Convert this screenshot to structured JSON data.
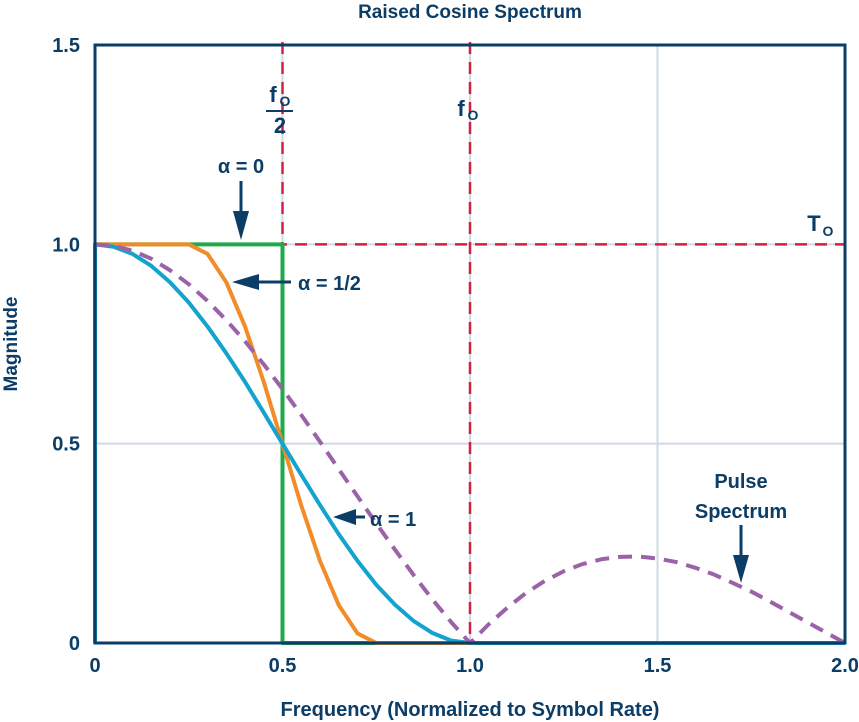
{
  "chart_data": {
    "type": "line",
    "title": "Raised Cosine Spectrum",
    "xlabel": "Frequency (Normalized to Symbol Rate)",
    "ylabel": "Magnitude",
    "xlim": [
      0,
      2.0
    ],
    "ylim": [
      0,
      1.5
    ],
    "xticks": [
      "0",
      "0.5",
      "1.0",
      "1.5",
      "2.0"
    ],
    "yticks": [
      "0",
      "0.5",
      "1.0",
      "1.5"
    ],
    "grid": true,
    "colors": {
      "axis": "#0b3d66",
      "grid": "#cfd8e3",
      "reference": "#d0213f",
      "alpha0": "#1fab4a",
      "alpha_half": "#f28c28",
      "alpha1": "#12a3cf",
      "pulse": "#9b62a8"
    },
    "reference_lines": {
      "vertical": [
        0.5,
        1.0
      ],
      "horizontal": [
        1.0
      ]
    },
    "reference_labels": {
      "fo_half_num": "f",
      "fo_half_sub": "O",
      "fo_half_den": "2",
      "fo": "f",
      "fo_sub": "O",
      "to": "T",
      "to_sub": "O"
    },
    "series": [
      {
        "name": "α = 0",
        "style": "solid",
        "x": [
          0,
          0,
          0.5,
          0.5,
          2.0
        ],
        "y": [
          0,
          1,
          1,
          0,
          0
        ]
      },
      {
        "name": "α = 1/2",
        "style": "solid",
        "x": [
          0,
          0,
          0.25,
          0.3,
          0.35,
          0.4,
          0.45,
          0.5,
          0.55,
          0.6,
          0.65,
          0.7,
          0.75,
          2.0
        ],
        "y": [
          0,
          1,
          1,
          0.976,
          0.905,
          0.794,
          0.655,
          0.5,
          0.345,
          0.206,
          0.095,
          0.024,
          0,
          0
        ]
      },
      {
        "name": "α = 1",
        "style": "solid",
        "x": [
          0,
          0,
          0.05,
          0.1,
          0.15,
          0.2,
          0.25,
          0.3,
          0.35,
          0.4,
          0.45,
          0.5,
          0.55,
          0.6,
          0.65,
          0.7,
          0.75,
          0.8,
          0.85,
          0.9,
          0.95,
          1.0,
          2.0
        ],
        "y": [
          0,
          1,
          0.994,
          0.976,
          0.946,
          0.905,
          0.854,
          0.794,
          0.727,
          0.655,
          0.578,
          0.5,
          0.422,
          0.346,
          0.273,
          0.206,
          0.146,
          0.096,
          0.055,
          0.025,
          0.006,
          0,
          0
        ]
      },
      {
        "name": "Pulse Spectrum",
        "style": "dashed",
        "x": [
          0,
          0.05,
          0.1,
          0.15,
          0.2,
          0.25,
          0.3,
          0.35,
          0.4,
          0.45,
          0.5,
          0.55,
          0.6,
          0.65,
          0.7,
          0.75,
          0.8,
          0.85,
          0.9,
          0.95,
          1.0,
          1.05,
          1.1,
          1.15,
          1.2,
          1.25,
          1.3,
          1.35,
          1.4,
          1.45,
          1.5,
          1.55,
          1.6,
          1.65,
          1.7,
          1.75,
          1.8,
          1.85,
          1.9,
          1.95,
          2.0
        ],
        "y": [
          1,
          0.996,
          0.984,
          0.964,
          0.935,
          0.9,
          0.858,
          0.81,
          0.757,
          0.699,
          0.637,
          0.572,
          0.505,
          0.436,
          0.368,
          0.3,
          0.234,
          0.17,
          0.109,
          0.052,
          0,
          0.047,
          0.089,
          0.126,
          0.156,
          0.18,
          0.198,
          0.21,
          0.216,
          0.217,
          0.212,
          0.203,
          0.189,
          0.172,
          0.151,
          0.129,
          0.104,
          0.078,
          0.052,
          0.026,
          0
        ]
      }
    ],
    "annotations": {
      "alpha0": "α = 0",
      "alpha_half": "α = 1/2",
      "alpha1": "α = 1",
      "pulse_line1": "Pulse",
      "pulse_line2": "Spectrum"
    }
  }
}
